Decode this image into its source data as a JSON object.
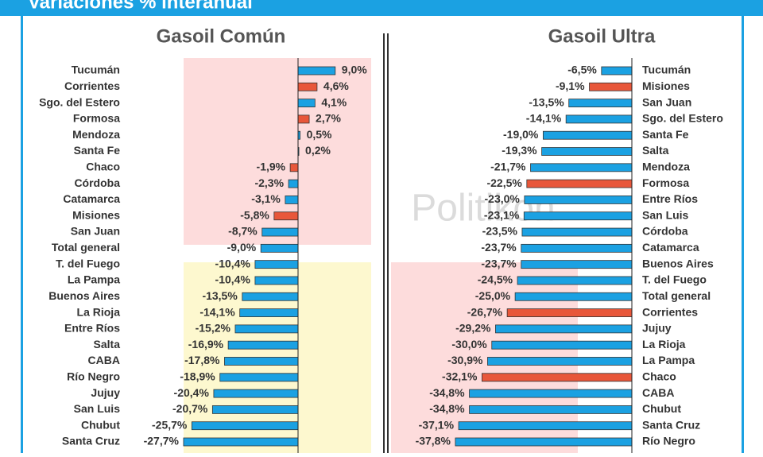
{
  "header": {
    "title": "Variaciones % interanual"
  },
  "watermark": "Politikon",
  "chart_data": [
    {
      "type": "hbar",
      "title": "Gasoil Común",
      "categories": [
        "Tucumán",
        "Corrientes",
        "Sgo. del Estero",
        "Formosa",
        "Mendoza",
        "Santa Fe",
        "Chaco",
        "Córdoba",
        "Catamarca",
        "Misiones",
        "San Juan",
        "Total general",
        "T. del Fuego",
        "La Pampa",
        "Buenos Aires",
        "La Rioja",
        "Entre Ríos",
        "Salta",
        "CABA",
        "Río Negro",
        "Jujuy",
        "San Luis",
        "Chubut",
        "Santa Cruz"
      ],
      "values": [
        9.0,
        4.6,
        4.1,
        2.7,
        0.5,
        0.2,
        -1.9,
        -2.3,
        -3.1,
        -5.8,
        -8.7,
        -9.0,
        -10.4,
        -10.4,
        -13.5,
        -14.1,
        -15.2,
        -16.9,
        -17.8,
        -18.9,
        -20.4,
        -20.7,
        -25.7,
        -27.7
      ],
      "value_labels": [
        "9,0%",
        "4,6%",
        "4,1%",
        "2,7%",
        "0,5%",
        "0,2%",
        "-1,9%",
        "-2,3%",
        "-3,1%",
        "-5,8%",
        "-8,7%",
        "-9,0%",
        "-10,4%",
        "-10,4%",
        "-13,5%",
        "-14,1%",
        "-15,2%",
        "-16,9%",
        "-17,8%",
        "-18,9%",
        "-20,4%",
        "-20,7%",
        "-25,7%",
        "-27,7%"
      ],
      "colors": [
        "#1ba1e2",
        "#e8573a",
        "#1ba1e2",
        "#e8573a",
        "#1ba1e2",
        "#1ba1e2",
        "#e8573a",
        "#1ba1e2",
        "#1ba1e2",
        "#e8573a",
        "#1ba1e2",
        "#1ba1e2",
        "#1ba1e2",
        "#1ba1e2",
        "#1ba1e2",
        "#1ba1e2",
        "#1ba1e2",
        "#1ba1e2",
        "#1ba1e2",
        "#1ba1e2",
        "#1ba1e2",
        "#1ba1e2",
        "#1ba1e2",
        "#1ba1e2"
      ],
      "xlim": [
        -30,
        15
      ],
      "label_side": "left"
    },
    {
      "type": "hbar",
      "title": "Gasoil Ultra",
      "categories": [
        "Tucumán",
        "Misiones",
        "San Juan",
        "Sgo. del Estero",
        "Santa Fe",
        "Salta",
        "Mendoza",
        "Formosa",
        "Entre Ríos",
        "San Luis",
        "Córdoba",
        "Catamarca",
        "Buenos Aires",
        "T. del Fuego",
        "Total general",
        "Corrientes",
        "Jujuy",
        "La Rioja",
        "La Pampa",
        "Chaco",
        "CABA",
        "Chubut",
        "Santa Cruz",
        "Río Negro"
      ],
      "values": [
        -6.5,
        -9.1,
        -13.5,
        -14.1,
        -19.0,
        -19.3,
        -21.7,
        -22.5,
        -23.0,
        -23.1,
        -23.5,
        -23.7,
        -23.7,
        -24.5,
        -25.0,
        -26.7,
        -29.2,
        -30.0,
        -30.9,
        -32.1,
        -34.8,
        -34.8,
        -37.1,
        -37.8
      ],
      "value_labels": [
        "-6,5%",
        "-9,1%",
        "-13,5%",
        "-14,1%",
        "-19,0%",
        "-19,3%",
        "-21,7%",
        "-22,5%",
        "-23,0%",
        "-23,1%",
        "-23,5%",
        "-23,7%",
        "-23,7%",
        "-24,5%",
        "-25,0%",
        "-26,7%",
        "-29,2%",
        "-30,0%",
        "-30,9%",
        "-32,1%",
        "-34,8%",
        "-34,8%",
        "-37,1%",
        "-37,8%"
      ],
      "colors": [
        "#1ba1e2",
        "#e8573a",
        "#1ba1e2",
        "#1ba1e2",
        "#1ba1e2",
        "#1ba1e2",
        "#1ba1e2",
        "#e8573a",
        "#1ba1e2",
        "#1ba1e2",
        "#1ba1e2",
        "#1ba1e2",
        "#1ba1e2",
        "#1ba1e2",
        "#1ba1e2",
        "#e8573a",
        "#1ba1e2",
        "#1ba1e2",
        "#1ba1e2",
        "#e8573a",
        "#1ba1e2",
        "#1ba1e2",
        "#1ba1e2",
        "#1ba1e2"
      ],
      "xlim": [
        -40,
        0
      ],
      "label_side": "right"
    }
  ]
}
